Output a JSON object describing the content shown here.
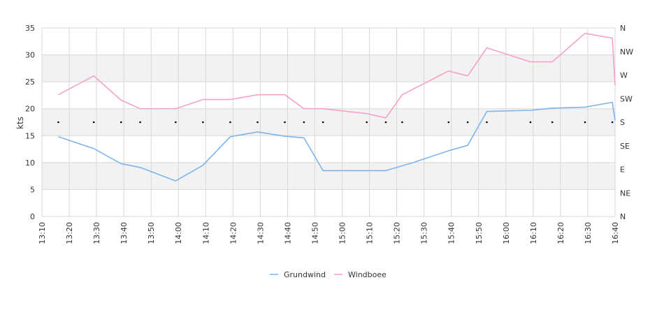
{
  "chart_data": {
    "type": "line",
    "ylabel": "kts",
    "ylim": [
      0,
      35
    ],
    "yticks": [
      0,
      5,
      10,
      15,
      20,
      25,
      30,
      35
    ],
    "y2_ticks": [
      "N",
      "NE",
      "E",
      "SE",
      "S",
      "SW",
      "W",
      "NW",
      "N"
    ],
    "x_ticks": [
      "13:10",
      "13:20",
      "13:30",
      "13:40",
      "13:50",
      "14:00",
      "14:10",
      "14:20",
      "14:30",
      "14:40",
      "14:50",
      "15:00",
      "15:10",
      "15:20",
      "15:30",
      "15:40",
      "15:50",
      "16:00",
      "16:10",
      "16:20",
      "16:30",
      "16:40"
    ],
    "xlim": [
      "13:10",
      "16:40"
    ],
    "grid": true,
    "legend_position": "bottom",
    "series": [
      {
        "name": "Grundwind",
        "color": "#7cb5ec",
        "points": [
          [
            "13:16",
            14.8
          ],
          [
            "13:29",
            12.6
          ],
          [
            "13:39",
            9.8
          ],
          [
            "13:46",
            9.1
          ],
          [
            "13:59",
            6.6
          ],
          [
            "14:09",
            9.5
          ],
          [
            "14:19",
            14.8
          ],
          [
            "14:29",
            15.7
          ],
          [
            "14:39",
            14.9
          ],
          [
            "14:46",
            14.6
          ],
          [
            "14:53",
            8.5
          ],
          [
            "15:09",
            8.5
          ],
          [
            "15:16",
            8.5
          ],
          [
            "15:26",
            10.0
          ],
          [
            "15:39",
            12.2
          ],
          [
            "15:46",
            13.2
          ],
          [
            "15:53",
            19.5
          ],
          [
            "16:09",
            19.7
          ],
          [
            "16:17",
            20.1
          ],
          [
            "16:29",
            20.3
          ],
          [
            "16:39",
            21.2
          ],
          [
            "16:40",
            17.8
          ]
        ]
      },
      {
        "name": "Windboee",
        "color": "#f7a1c8",
        "points": [
          [
            "13:16",
            22.6
          ],
          [
            "13:29",
            26.1
          ],
          [
            "13:39",
            21.6
          ],
          [
            "13:46",
            20.0
          ],
          [
            "13:59",
            20.0
          ],
          [
            "14:09",
            21.7
          ],
          [
            "14:19",
            21.7
          ],
          [
            "14:29",
            22.6
          ],
          [
            "14:39",
            22.6
          ],
          [
            "14:46",
            20.0
          ],
          [
            "14:53",
            20.0
          ],
          [
            "15:09",
            19.1
          ],
          [
            "15:16",
            18.3
          ],
          [
            "15:22",
            22.6
          ],
          [
            "15:39",
            27.0
          ],
          [
            "15:46",
            26.1
          ],
          [
            "15:53",
            31.3
          ],
          [
            "16:09",
            28.7
          ],
          [
            "16:17",
            28.7
          ],
          [
            "16:29",
            34.0
          ],
          [
            "16:39",
            33.1
          ],
          [
            "16:40",
            24.4
          ]
        ]
      }
    ],
    "direction_markers": [
      "13:16",
      "13:29",
      "13:39",
      "13:46",
      "13:59",
      "14:09",
      "14:19",
      "14:29",
      "14:39",
      "14:46",
      "14:53",
      "15:09",
      "15:16",
      "15:22",
      "15:39",
      "15:46",
      "15:53",
      "16:09",
      "16:17",
      "16:29",
      "16:39"
    ],
    "direction_value": "S",
    "colors": {
      "band": "#f2f2f2",
      "grid": "#d8d8d8",
      "marker": "#000000"
    }
  }
}
